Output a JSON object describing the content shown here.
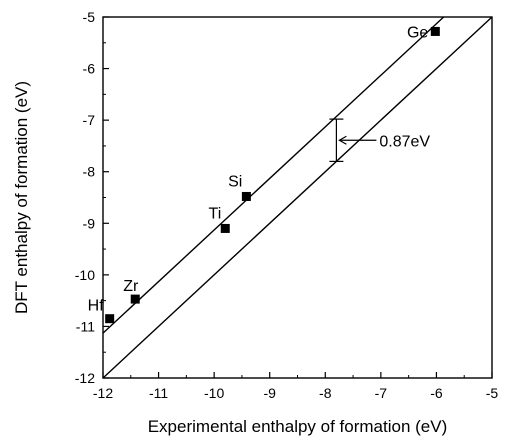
{
  "chart_data": {
    "type": "scatter",
    "title": "",
    "xlabel": "Experimental enthalpy of formation (eV)",
    "ylabel": "DFT enthalpy of formation (eV)",
    "xlim": [
      -12,
      -5
    ],
    "ylim": [
      -12,
      -5
    ],
    "xticks": [
      -12,
      -11,
      -10,
      -9,
      -8,
      -7,
      -6,
      -5
    ],
    "yticks": [
      -12,
      -11,
      -10,
      -9,
      -8,
      -7,
      -6,
      -5
    ],
    "xtick_labels": [
      "-12",
      "-11",
      "-10",
      "-9",
      "-8",
      "-7",
      "-6",
      "-5"
    ],
    "ytick_labels": [
      "-12",
      "-11",
      "-10",
      "-9",
      "-8",
      "-7",
      "-6",
      "-5"
    ],
    "grid": false,
    "series": [
      {
        "points": [
          {
            "label": "Hf",
            "x": -11.88,
            "y": -10.85
          },
          {
            "label": "Zr",
            "x": -11.42,
            "y": -10.47
          },
          {
            "label": "Ti",
            "x": -9.8,
            "y": -9.1
          },
          {
            "label": "Si",
            "x": -9.42,
            "y": -8.48
          },
          {
            "label": "Ge",
            "x": -6.02,
            "y": -5.28
          }
        ]
      }
    ],
    "lines": [
      {
        "kind": "y = x",
        "slope": 1,
        "intercept": 0
      },
      {
        "kind": "y = x + 0.87",
        "slope": 1,
        "intercept": 0.87
      }
    ],
    "annotation": {
      "text": "0.87eV",
      "x": -7.8,
      "y_low": -7.8,
      "y_high": -6.98
    },
    "colors": {
      "marker": "#000000",
      "line": "#000000"
    }
  }
}
